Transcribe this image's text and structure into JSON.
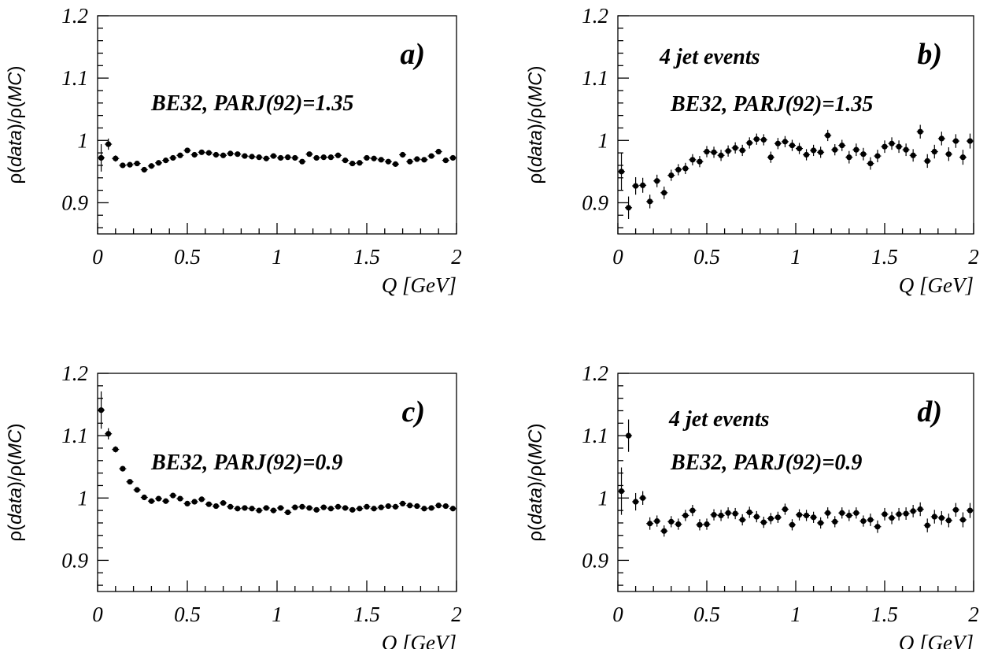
{
  "chart_data": [
    {
      "type": "scatter",
      "panel_label": "a)",
      "annotations": [
        "BE32, PARJ(92)=1.35"
      ],
      "xlabel": "Q [GeV]",
      "ylabel_main": "ρ(",
      "ylabel_data": "data",
      "ylabel_mid": ")/ρ(",
      "ylabel_mc": "MC",
      "ylabel_end": ")",
      "xlim": [
        0,
        2
      ],
      "ylim": [
        0.85,
        1.2
      ],
      "xticks": [
        "0",
        "0.5",
        "1",
        "1.5",
        "2"
      ],
      "yticks": [
        "0.9",
        "1",
        "1.1",
        "1.2"
      ],
      "xtick_values": [
        0,
        0.5,
        1,
        1.5,
        2
      ],
      "ytick_values": [
        0.9,
        1.0,
        1.1,
        1.2
      ],
      "x": [
        0.02,
        0.06,
        0.1,
        0.14,
        0.18,
        0.22,
        0.26,
        0.3,
        0.34,
        0.38,
        0.42,
        0.46,
        0.5,
        0.54,
        0.58,
        0.62,
        0.66,
        0.7,
        0.74,
        0.78,
        0.82,
        0.86,
        0.9,
        0.94,
        0.98,
        1.02,
        1.06,
        1.1,
        1.14,
        1.18,
        1.22,
        1.26,
        1.3,
        1.34,
        1.38,
        1.42,
        1.46,
        1.5,
        1.54,
        1.58,
        1.62,
        1.66,
        1.7,
        1.74,
        1.78,
        1.82,
        1.86,
        1.9,
        1.94,
        1.98
      ],
      "y": [
        0.972,
        0.994,
        0.971,
        0.96,
        0.961,
        0.963,
        0.953,
        0.959,
        0.964,
        0.968,
        0.972,
        0.976,
        0.984,
        0.977,
        0.981,
        0.98,
        0.977,
        0.976,
        0.979,
        0.978,
        0.975,
        0.974,
        0.973,
        0.971,
        0.975,
        0.972,
        0.973,
        0.972,
        0.966,
        0.978,
        0.972,
        0.973,
        0.973,
        0.976,
        0.968,
        0.963,
        0.964,
        0.972,
        0.971,
        0.969,
        0.966,
        0.962,
        0.977,
        0.966,
        0.97,
        0.969,
        0.975,
        0.982,
        0.968,
        0.972
      ],
      "yerr": [
        0.022,
        0.009,
        0.005,
        0.004,
        0.004,
        0.003,
        0.003,
        0.003,
        0.003,
        0.003,
        0.003,
        0.003,
        0.003,
        0.003,
        0.003,
        0.003,
        0.003,
        0.003,
        0.003,
        0.003,
        0.003,
        0.003,
        0.003,
        0.003,
        0.003,
        0.003,
        0.003,
        0.003,
        0.003,
        0.003,
        0.003,
        0.003,
        0.003,
        0.003,
        0.003,
        0.003,
        0.003,
        0.003,
        0.003,
        0.003,
        0.003,
        0.003,
        0.003,
        0.003,
        0.003,
        0.003,
        0.003,
        0.003,
        0.003,
        0.003
      ]
    },
    {
      "type": "scatter",
      "panel_label": "b)",
      "annotations": [
        "4 jet events",
        "BE32, PARJ(92)=1.35"
      ],
      "xlabel": "Q [GeV]",
      "ylabel_main": "ρ(",
      "ylabel_data": "data",
      "ylabel_mid": ")/ρ(",
      "ylabel_mc": "MC",
      "ylabel_end": ")",
      "xlim": [
        0,
        2
      ],
      "ylim": [
        0.85,
        1.2
      ],
      "xticks": [
        "0",
        "0.5",
        "1",
        "1.5",
        "2"
      ],
      "yticks": [
        "0.9",
        "1",
        "1.1",
        "1.2"
      ],
      "xtick_values": [
        0,
        0.5,
        1,
        1.5,
        2
      ],
      "ytick_values": [
        0.9,
        1.0,
        1.1,
        1.2
      ],
      "x": [
        0.02,
        0.06,
        0.1,
        0.14,
        0.18,
        0.22,
        0.26,
        0.3,
        0.34,
        0.38,
        0.42,
        0.46,
        0.5,
        0.54,
        0.58,
        0.62,
        0.66,
        0.7,
        0.74,
        0.78,
        0.82,
        0.86,
        0.9,
        0.94,
        0.98,
        1.02,
        1.06,
        1.1,
        1.14,
        1.18,
        1.22,
        1.26,
        1.3,
        1.34,
        1.38,
        1.42,
        1.46,
        1.5,
        1.54,
        1.58,
        1.62,
        1.66,
        1.7,
        1.74,
        1.78,
        1.82,
        1.86,
        1.9,
        1.94,
        1.98
      ],
      "y": [
        0.95,
        0.892,
        0.927,
        0.928,
        0.902,
        0.935,
        0.916,
        0.944,
        0.953,
        0.955,
        0.969,
        0.966,
        0.982,
        0.981,
        0.976,
        0.983,
        0.988,
        0.984,
        0.996,
        1.002,
        1.001,
        0.973,
        0.995,
        0.998,
        0.992,
        0.987,
        0.977,
        0.984,
        0.981,
        1.008,
        0.985,
        0.992,
        0.973,
        0.985,
        0.978,
        0.963,
        0.975,
        0.99,
        0.995,
        0.99,
        0.985,
        0.976,
        1.014,
        0.967,
        0.982,
        1.003,
        0.978,
        0.999,
        0.973,
        0.999
      ],
      "yerr": [
        0.03,
        0.018,
        0.014,
        0.012,
        0.011,
        0.01,
        0.01,
        0.009,
        0.009,
        0.009,
        0.009,
        0.009,
        0.009,
        0.009,
        0.009,
        0.009,
        0.009,
        0.009,
        0.009,
        0.009,
        0.009,
        0.009,
        0.009,
        0.009,
        0.009,
        0.009,
        0.009,
        0.009,
        0.009,
        0.009,
        0.009,
        0.009,
        0.01,
        0.01,
        0.01,
        0.01,
        0.01,
        0.01,
        0.01,
        0.01,
        0.01,
        0.01,
        0.011,
        0.011,
        0.011,
        0.011,
        0.011,
        0.011,
        0.012,
        0.012
      ]
    },
    {
      "type": "scatter",
      "panel_label": "c)",
      "annotations": [
        "BE32, PARJ(92)=0.9"
      ],
      "xlabel": "Q [GeV]",
      "ylabel_main": "ρ(",
      "ylabel_data": "data",
      "ylabel_mid": ")/ρ(",
      "ylabel_mc": "MC",
      "ylabel_end": ")",
      "xlim": [
        0,
        2
      ],
      "ylim": [
        0.85,
        1.2
      ],
      "xticks": [
        "0",
        "0.5",
        "1",
        "1.5",
        "2"
      ],
      "yticks": [
        "0.9",
        "1",
        "1.1",
        "1.2"
      ],
      "xtick_values": [
        0,
        0.5,
        1,
        1.5,
        2
      ],
      "ytick_values": [
        0.9,
        1.0,
        1.1,
        1.2
      ],
      "x": [
        0.02,
        0.06,
        0.1,
        0.14,
        0.18,
        0.22,
        0.26,
        0.3,
        0.34,
        0.38,
        0.42,
        0.46,
        0.5,
        0.54,
        0.58,
        0.62,
        0.66,
        0.7,
        0.74,
        0.78,
        0.82,
        0.86,
        0.9,
        0.94,
        0.98,
        1.02,
        1.06,
        1.1,
        1.14,
        1.18,
        1.22,
        1.26,
        1.3,
        1.34,
        1.38,
        1.42,
        1.46,
        1.5,
        1.54,
        1.58,
        1.62,
        1.66,
        1.7,
        1.74,
        1.78,
        1.82,
        1.86,
        1.9,
        1.94,
        1.98
      ],
      "y": [
        1.141,
        1.103,
        1.078,
        1.047,
        1.026,
        1.013,
        1.001,
        0.995,
        0.999,
        0.995,
        1.004,
        0.999,
        0.991,
        0.994,
        0.998,
        0.99,
        0.987,
        0.992,
        0.986,
        0.983,
        0.984,
        0.983,
        0.98,
        0.984,
        0.98,
        0.984,
        0.977,
        0.985,
        0.986,
        0.984,
        0.981,
        0.985,
        0.983,
        0.986,
        0.984,
        0.981,
        0.983,
        0.986,
        0.983,
        0.985,
        0.987,
        0.986,
        0.991,
        0.988,
        0.987,
        0.983,
        0.984,
        0.988,
        0.987,
        0.983
      ],
      "yerr": [
        0.03,
        0.009,
        0.005,
        0.004,
        0.004,
        0.003,
        0.003,
        0.003,
        0.003,
        0.003,
        0.003,
        0.003,
        0.003,
        0.003,
        0.003,
        0.003,
        0.003,
        0.003,
        0.003,
        0.003,
        0.003,
        0.003,
        0.003,
        0.003,
        0.003,
        0.003,
        0.003,
        0.003,
        0.003,
        0.003,
        0.003,
        0.003,
        0.003,
        0.003,
        0.003,
        0.003,
        0.003,
        0.003,
        0.003,
        0.003,
        0.003,
        0.003,
        0.003,
        0.003,
        0.003,
        0.003,
        0.003,
        0.003,
        0.003,
        0.003
      ]
    },
    {
      "type": "scatter",
      "panel_label": "d)",
      "annotations": [
        "4 jet events",
        "BE32, PARJ(92)=0.9"
      ],
      "xlabel": "Q [GeV]",
      "ylabel_main": "ρ(",
      "ylabel_data": "data",
      "ylabel_mid": ")/ρ(",
      "ylabel_mc": "MC",
      "ylabel_end": ")",
      "xlim": [
        0,
        2
      ],
      "ylim": [
        0.85,
        1.2
      ],
      "xticks": [
        "0",
        "0.5",
        "1",
        "1.5",
        "2"
      ],
      "yticks": [
        "0.9",
        "1",
        "1.1",
        "1.2"
      ],
      "xtick_values": [
        0,
        0.5,
        1,
        1.5,
        2
      ],
      "ytick_values": [
        0.9,
        1.0,
        1.1,
        1.2
      ],
      "x": [
        0.02,
        0.06,
        0.1,
        0.14,
        0.18,
        0.22,
        0.26,
        0.3,
        0.34,
        0.38,
        0.42,
        0.46,
        0.5,
        0.54,
        0.58,
        0.62,
        0.66,
        0.7,
        0.74,
        0.78,
        0.82,
        0.86,
        0.9,
        0.94,
        0.98,
        1.02,
        1.06,
        1.1,
        1.14,
        1.18,
        1.22,
        1.26,
        1.3,
        1.34,
        1.38,
        1.42,
        1.46,
        1.5,
        1.54,
        1.58,
        1.62,
        1.66,
        1.7,
        1.74,
        1.78,
        1.82,
        1.86,
        1.9,
        1.94,
        1.98
      ],
      "y": [
        1.011,
        1.1,
        0.994,
        1.0,
        0.959,
        0.963,
        0.947,
        0.962,
        0.958,
        0.972,
        0.98,
        0.957,
        0.958,
        0.973,
        0.972,
        0.976,
        0.975,
        0.965,
        0.977,
        0.97,
        0.961,
        0.967,
        0.969,
        0.982,
        0.957,
        0.973,
        0.972,
        0.969,
        0.96,
        0.976,
        0.962,
        0.976,
        0.972,
        0.976,
        0.963,
        0.965,
        0.954,
        0.974,
        0.968,
        0.974,
        0.975,
        0.979,
        0.982,
        0.956,
        0.97,
        0.968,
        0.964,
        0.981,
        0.965,
        0.98
      ],
      "yerr": [
        0.038,
        0.026,
        0.014,
        0.011,
        0.01,
        0.009,
        0.009,
        0.009,
        0.009,
        0.009,
        0.009,
        0.009,
        0.009,
        0.009,
        0.009,
        0.009,
        0.009,
        0.009,
        0.009,
        0.009,
        0.009,
        0.009,
        0.009,
        0.009,
        0.009,
        0.009,
        0.009,
        0.009,
        0.009,
        0.009,
        0.009,
        0.009,
        0.009,
        0.009,
        0.009,
        0.01,
        0.01,
        0.01,
        0.01,
        0.01,
        0.01,
        0.01,
        0.011,
        0.011,
        0.011,
        0.011,
        0.011,
        0.011,
        0.012,
        0.012
      ]
    }
  ]
}
